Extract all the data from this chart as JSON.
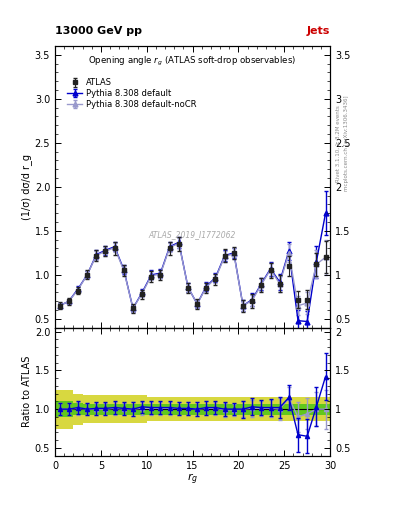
{
  "title_top": "13000 GeV pp",
  "title_right": "Jets",
  "plot_title": "Opening angle $r_g$ (ATLAS soft-drop observables)",
  "ylabel_main": "(1/σ) dσ/d r_g",
  "ylabel_ratio": "Ratio to ATLAS",
  "xlabel": "r_g",
  "watermark": "ATLAS_2019_I1772062",
  "rivet_text": "Rivet 3.1.10, ≥ 3.2M events",
  "arxiv_text": "mcplots.cern.ch [arXiv:1306.3436]",
  "x": [
    0.5,
    1.5,
    2.5,
    3.5,
    4.5,
    5.5,
    6.5,
    7.5,
    8.5,
    9.5,
    10.5,
    11.5,
    12.5,
    13.5,
    14.5,
    15.5,
    16.5,
    17.5,
    18.5,
    19.5,
    20.5,
    21.5,
    22.5,
    23.5,
    24.5,
    25.5,
    26.5,
    27.5,
    28.5,
    29.5
  ],
  "atlas_y": [
    0.65,
    0.7,
    0.82,
    1.0,
    1.22,
    1.27,
    1.3,
    1.05,
    0.62,
    0.78,
    0.98,
    1.0,
    1.3,
    1.35,
    0.85,
    0.67,
    0.85,
    0.95,
    1.22,
    1.25,
    0.65,
    0.7,
    0.88,
    1.05,
    0.9,
    1.1,
    0.72,
    0.72,
    1.12,
    1.2
  ],
  "atlas_yerr": [
    0.04,
    0.04,
    0.04,
    0.05,
    0.06,
    0.06,
    0.07,
    0.06,
    0.05,
    0.05,
    0.06,
    0.06,
    0.07,
    0.08,
    0.06,
    0.06,
    0.06,
    0.06,
    0.07,
    0.07,
    0.07,
    0.08,
    0.08,
    0.09,
    0.1,
    0.11,
    0.1,
    0.11,
    0.13,
    0.18
  ],
  "pythia_default_y": [
    0.65,
    0.7,
    0.84,
    1.0,
    1.23,
    1.28,
    1.32,
    1.06,
    0.62,
    0.8,
    1.0,
    1.02,
    1.32,
    1.37,
    0.86,
    0.67,
    0.87,
    0.97,
    1.22,
    1.25,
    0.65,
    0.72,
    0.9,
    1.07,
    0.92,
    1.27,
    0.48,
    0.47,
    1.15,
    1.7
  ],
  "pythia_default_yerr": [
    0.03,
    0.03,
    0.03,
    0.04,
    0.05,
    0.05,
    0.05,
    0.05,
    0.04,
    0.04,
    0.05,
    0.05,
    0.05,
    0.06,
    0.05,
    0.05,
    0.05,
    0.05,
    0.06,
    0.06,
    0.06,
    0.07,
    0.07,
    0.08,
    0.09,
    0.1,
    0.12,
    0.12,
    0.18,
    0.25
  ],
  "pythia_nocr_y": [
    0.65,
    0.7,
    0.83,
    1.0,
    1.22,
    1.27,
    1.31,
    1.05,
    0.62,
    0.79,
    0.99,
    1.01,
    1.31,
    1.36,
    0.86,
    0.67,
    0.86,
    0.96,
    1.21,
    1.24,
    0.65,
    0.71,
    0.89,
    1.06,
    0.9,
    1.25,
    0.65,
    0.68,
    1.12,
    1.2
  ],
  "pythia_nocr_yerr": [
    0.03,
    0.03,
    0.03,
    0.04,
    0.05,
    0.05,
    0.05,
    0.05,
    0.04,
    0.04,
    0.05,
    0.05,
    0.05,
    0.06,
    0.05,
    0.05,
    0.05,
    0.05,
    0.06,
    0.06,
    0.06,
    0.06,
    0.07,
    0.08,
    0.09,
    0.1,
    0.11,
    0.12,
    0.16,
    0.2
  ],
  "ratio_default_y": [
    1.0,
    1.0,
    1.02,
    1.0,
    1.01,
    1.01,
    1.02,
    1.01,
    1.0,
    1.03,
    1.02,
    1.02,
    1.02,
    1.01,
    1.01,
    1.0,
    1.02,
    1.02,
    1.0,
    1.0,
    1.0,
    1.03,
    1.02,
    1.02,
    1.02,
    1.15,
    0.67,
    0.65,
    1.03,
    1.42
  ],
  "ratio_default_yerr": [
    0.08,
    0.08,
    0.08,
    0.08,
    0.08,
    0.08,
    0.08,
    0.08,
    0.09,
    0.08,
    0.08,
    0.08,
    0.08,
    0.08,
    0.08,
    0.09,
    0.09,
    0.08,
    0.09,
    0.08,
    0.11,
    0.11,
    0.1,
    0.11,
    0.14,
    0.16,
    0.22,
    0.22,
    0.25,
    0.3
  ],
  "ratio_nocr_y": [
    1.0,
    1.0,
    1.01,
    1.0,
    1.0,
    1.0,
    1.01,
    1.0,
    1.0,
    1.01,
    1.01,
    1.01,
    1.01,
    1.01,
    1.01,
    1.0,
    1.01,
    1.01,
    0.99,
    0.99,
    1.0,
    1.01,
    1.01,
    1.01,
    1.0,
    1.14,
    0.9,
    0.94,
    1.0,
    1.0
  ],
  "ratio_nocr_yerr": [
    0.08,
    0.08,
    0.08,
    0.08,
    0.08,
    0.08,
    0.08,
    0.08,
    0.09,
    0.08,
    0.08,
    0.08,
    0.08,
    0.08,
    0.08,
    0.09,
    0.09,
    0.08,
    0.09,
    0.08,
    0.1,
    0.11,
    0.1,
    0.11,
    0.14,
    0.15,
    0.19,
    0.2,
    0.22,
    0.25
  ],
  "band_x_edges": [
    0,
    1,
    2,
    3,
    4,
    5,
    6,
    7,
    8,
    9,
    10,
    11,
    12,
    13,
    14,
    15,
    16,
    17,
    18,
    19,
    20,
    21,
    22,
    23,
    24,
    25,
    26,
    27,
    28,
    29,
    30
  ],
  "band_green_lo": [
    0.9,
    0.9,
    0.92,
    0.93,
    0.93,
    0.93,
    0.93,
    0.93,
    0.93,
    0.93,
    0.93,
    0.93,
    0.93,
    0.93,
    0.93,
    0.93,
    0.93,
    0.93,
    0.93,
    0.93,
    0.93,
    0.93,
    0.93,
    0.93,
    0.93,
    0.93,
    0.93,
    0.93,
    0.93,
    0.93,
    0.93
  ],
  "band_green_hi": [
    1.1,
    1.1,
    1.08,
    1.07,
    1.07,
    1.07,
    1.07,
    1.07,
    1.07,
    1.07,
    1.07,
    1.07,
    1.07,
    1.07,
    1.07,
    1.07,
    1.07,
    1.07,
    1.07,
    1.07,
    1.07,
    1.07,
    1.07,
    1.07,
    1.07,
    1.07,
    1.07,
    1.07,
    1.07,
    1.07,
    1.07
  ],
  "band_yellow_lo": [
    0.75,
    0.75,
    0.8,
    0.82,
    0.82,
    0.82,
    0.82,
    0.82,
    0.82,
    0.82,
    0.85,
    0.85,
    0.85,
    0.85,
    0.85,
    0.85,
    0.85,
    0.85,
    0.85,
    0.85,
    0.85,
    0.85,
    0.85,
    0.85,
    0.85,
    0.85,
    0.85,
    0.85,
    0.85,
    0.85,
    0.85
  ],
  "band_yellow_hi": [
    1.25,
    1.25,
    1.2,
    1.18,
    1.18,
    1.18,
    1.18,
    1.18,
    1.18,
    1.18,
    1.15,
    1.15,
    1.15,
    1.15,
    1.15,
    1.15,
    1.15,
    1.15,
    1.15,
    1.15,
    1.15,
    1.15,
    1.15,
    1.15,
    1.15,
    1.15,
    1.15,
    1.15,
    1.15,
    1.15,
    1.15
  ],
  "color_atlas": "#222222",
  "color_pythia_default": "#0000cc",
  "color_pythia_nocr": "#9999cc",
  "color_green": "#00bb00",
  "color_yellow": "#cccc00",
  "xlim": [
    0,
    30
  ],
  "ylim_main": [
    0.4,
    3.6
  ],
  "ylim_ratio": [
    0.4,
    2.05
  ],
  "yticks_main": [
    0.5,
    1.0,
    1.5,
    2.0,
    2.5,
    3.0,
    3.5
  ],
  "yticks_ratio": [
    0.5,
    1.0,
    1.5,
    2.0
  ],
  "xticks": [
    0,
    5,
    10,
    15,
    20,
    25,
    30
  ]
}
